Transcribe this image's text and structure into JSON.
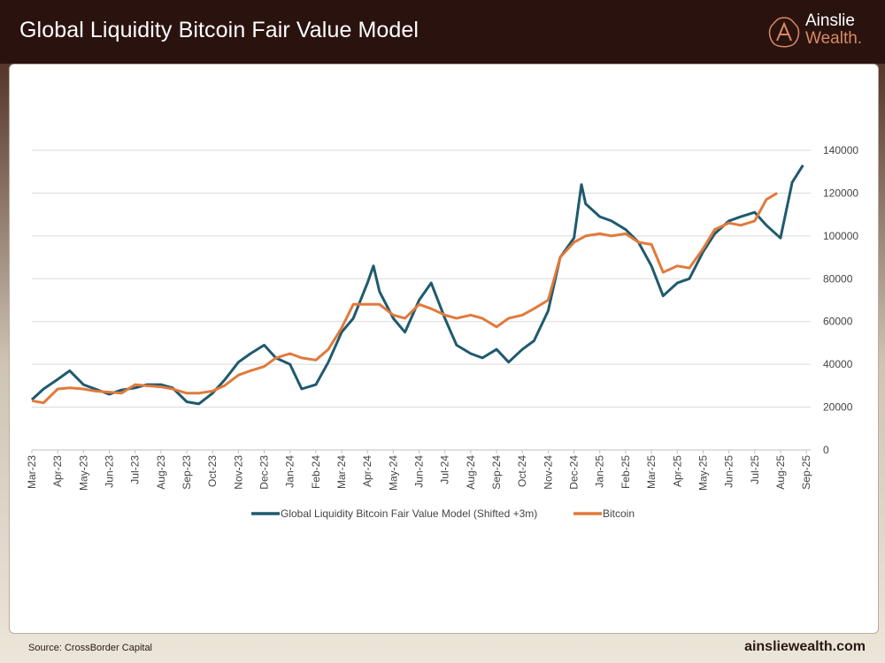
{
  "header": {
    "title": "Global Liquidity Bitcoin Fair Value Model",
    "logo_text": [
      "Ainslie",
      "Wealth."
    ]
  },
  "footer": {
    "source": "Source: CrossBorder Capital",
    "url": "ainsliewealth.com"
  },
  "colors": {
    "fair_value": "#1f5a6e",
    "bitcoin": "#e07a3c",
    "header_bg": "#2a130f",
    "grid": "#d9d9d9"
  },
  "chart_data": {
    "type": "line",
    "title": "",
    "xlabel": "",
    "ylabel": "",
    "ylim": [
      0,
      140000
    ],
    "yticks": [
      0,
      20000,
      40000,
      60000,
      80000,
      100000,
      120000,
      140000
    ],
    "xticks": [
      "Mar-23",
      "Apr-23",
      "May-23",
      "Jun-23",
      "Jul-23",
      "Aug-23",
      "Sep-23",
      "Oct-23",
      "Nov-23",
      "Dec-23",
      "Jan-24",
      "Feb-24",
      "Mar-24",
      "Apr-24",
      "May-24",
      "Jun-24",
      "Jul-24",
      "Aug-24",
      "Sep-24",
      "Oct-24",
      "Nov-24",
      "Dec-24",
      "Jan-25",
      "Feb-25",
      "Mar-25",
      "Apr-25",
      "May-25",
      "Jun-25",
      "Jul-25",
      "Aug-25",
      "Sep-25"
    ],
    "grid": true,
    "legend_position": "bottom",
    "series": [
      {
        "name": "Global Liquidity Bitcoin Fair Value Model (Shifted +3m)",
        "color": "#1f5a6e",
        "x": [
          "2023-03-01",
          "2023-03-15",
          "2023-04-01",
          "2023-04-15",
          "2023-05-01",
          "2023-05-15",
          "2023-06-01",
          "2023-06-15",
          "2023-07-01",
          "2023-07-15",
          "2023-08-01",
          "2023-08-15",
          "2023-09-01",
          "2023-09-15",
          "2023-10-01",
          "2023-10-15",
          "2023-11-01",
          "2023-11-15",
          "2023-12-01",
          "2023-12-15",
          "2024-01-01",
          "2024-01-15",
          "2024-02-01",
          "2024-02-15",
          "2024-03-01",
          "2024-03-15",
          "2024-04-01",
          "2024-04-08",
          "2024-04-15",
          "2024-05-01",
          "2024-05-15",
          "2024-06-01",
          "2024-06-15",
          "2024-07-01",
          "2024-07-15",
          "2024-08-01",
          "2024-08-15",
          "2024-09-01",
          "2024-09-15",
          "2024-10-01",
          "2024-10-15",
          "2024-11-01",
          "2024-11-15",
          "2024-12-01",
          "2024-12-10",
          "2024-12-15",
          "2025-01-01",
          "2025-01-15",
          "2025-02-01",
          "2025-02-15",
          "2025-03-01",
          "2025-03-15",
          "2025-04-01",
          "2025-04-15",
          "2025-05-01",
          "2025-05-15",
          "2025-06-01",
          "2025-06-15",
          "2025-07-01",
          "2025-07-15",
          "2025-08-01",
          "2025-08-15",
          "2025-08-28"
        ],
        "y": [
          23500,
          28500,
          33000,
          37000,
          30500,
          28500,
          26000,
          28000,
          29000,
          30500,
          30500,
          29000,
          22500,
          21500,
          26500,
          32500,
          41000,
          45000,
          49000,
          43000,
          40000,
          28500,
          30500,
          41000,
          55000,
          61500,
          78000,
          86000,
          74000,
          61500,
          55000,
          70000,
          78000,
          61500,
          49000,
          45000,
          43000,
          47000,
          41000,
          47000,
          51000,
          65000,
          90000,
          99000,
          124000,
          115000,
          109000,
          107000,
          103000,
          97000,
          86000,
          72000,
          78000,
          80000,
          92500,
          101000,
          107000,
          109000,
          111000,
          105000,
          99000,
          125000,
          133000
        ]
      },
      {
        "name": "Bitcoin",
        "color": "#e07a3c",
        "x": [
          "2023-03-01",
          "2023-03-15",
          "2023-04-01",
          "2023-04-15",
          "2023-05-01",
          "2023-05-15",
          "2023-06-01",
          "2023-06-15",
          "2023-07-01",
          "2023-07-15",
          "2023-08-01",
          "2023-08-15",
          "2023-09-01",
          "2023-09-15",
          "2023-10-01",
          "2023-10-15",
          "2023-11-01",
          "2023-11-15",
          "2023-12-01",
          "2023-12-15",
          "2024-01-01",
          "2024-01-15",
          "2024-02-01",
          "2024-02-15",
          "2024-03-01",
          "2024-03-15",
          "2024-04-01",
          "2024-04-15",
          "2024-05-01",
          "2024-05-15",
          "2024-06-01",
          "2024-06-15",
          "2024-07-01",
          "2024-07-15",
          "2024-08-01",
          "2024-08-15",
          "2024-09-01",
          "2024-09-15",
          "2024-10-01",
          "2024-10-15",
          "2024-11-01",
          "2024-11-15",
          "2024-12-01",
          "2024-12-15",
          "2025-01-01",
          "2025-01-15",
          "2025-02-01",
          "2025-02-15",
          "2025-03-01",
          "2025-03-15",
          "2025-04-01",
          "2025-04-15",
          "2025-05-01",
          "2025-05-15",
          "2025-06-01",
          "2025-06-15",
          "2025-07-01",
          "2025-07-15",
          "2025-07-28"
        ],
        "y": [
          23000,
          22000,
          28500,
          29000,
          28500,
          27500,
          27000,
          26500,
          30500,
          30000,
          29500,
          28500,
          26500,
          26500,
          27500,
          30000,
          35000,
          37000,
          39000,
          43000,
          45000,
          43000,
          42000,
          47000,
          57000,
          68000,
          68000,
          68000,
          63000,
          61500,
          68000,
          66000,
          63000,
          61500,
          63000,
          61500,
          57500,
          61500,
          63000,
          66000,
          70000,
          90000,
          97000,
          100000,
          101000,
          100000,
          101000,
          97000,
          96000,
          83000,
          86000,
          85000,
          94000,
          103000,
          106000,
          105000,
          107000,
          117000,
          120000
        ]
      }
    ]
  }
}
